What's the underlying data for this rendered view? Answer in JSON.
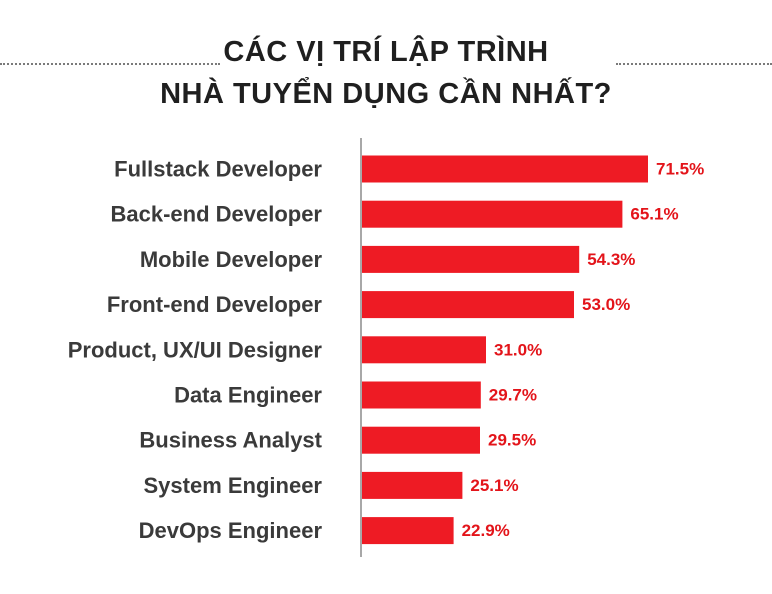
{
  "chart_data": {
    "type": "bar",
    "orientation": "horizontal",
    "title": "CÁC VỊ TRÍ LẬP TRÌNH NHÀ TUYỂN DỤNG CẦN NHẤT?",
    "title_lines": [
      "CÁC VỊ TRÍ LẬP TRÌNH",
      "NHÀ TUYỂN DỤNG CẦN NHẤT?"
    ],
    "categories": [
      "Fullstack Developer",
      "Back-end Developer",
      "Mobile Developer",
      "Front-end Developer",
      "Product, UX/UI Designer",
      "Data Engineer",
      "Business Analyst",
      "System Engineer",
      "DevOps Engineer"
    ],
    "values": [
      71.5,
      65.1,
      54.3,
      53.0,
      31.0,
      29.7,
      29.5,
      25.1,
      22.9
    ],
    "value_labels": [
      "71.5%",
      "65.1%",
      "54.3%",
      "53.0%",
      "31.0%",
      "29.7%",
      "29.5%",
      "25.1%",
      "22.9%"
    ],
    "unit": "%",
    "xlim": [
      0,
      100
    ],
    "grid": false,
    "legend": "none",
    "bar_color": "#ee1b24",
    "label_color": "#e3141a",
    "axis_color": "#8c8c8c"
  }
}
